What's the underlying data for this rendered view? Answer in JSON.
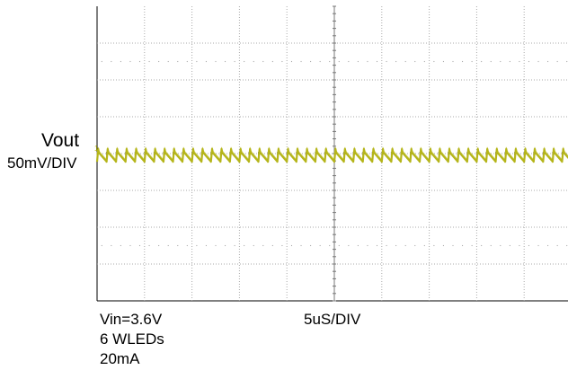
{
  "chart_data": {
    "type": "line",
    "title": "",
    "channel": {
      "name": "Vout",
      "scale": "50mV/DIV",
      "marker": "1",
      "color": "#b5b51a"
    },
    "timebase": "5uS/DIV",
    "conditions": [
      "Vin=3.6V",
      "6 WLEDs",
      "20mA"
    ],
    "divisions": {
      "x": 10,
      "y": 8
    },
    "grid": true,
    "grid_color": "#aaaaaa",
    "ripple": {
      "description": "sawtooth output ripple",
      "period_div": 0.2,
      "peak_to_peak_div": 0.35,
      "center_div": 0.05
    },
    "series": [
      {
        "name": "Vout",
        "shape": "sawtooth",
        "x_start_div": 0,
        "x_end_div": 10,
        "period_div": 0.2,
        "peak_to_peak_div": 0.35
      }
    ]
  }
}
